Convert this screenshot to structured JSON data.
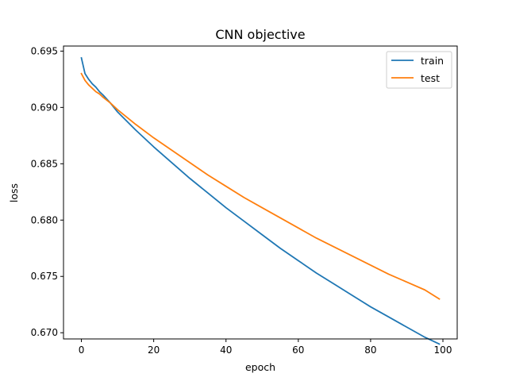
{
  "chart_data": {
    "type": "line",
    "title": "CNN objective",
    "xlabel": "epoch",
    "ylabel": "loss",
    "xlim": [
      -4.95,
      103.95
    ],
    "ylim": [
      0.66945,
      0.69545
    ],
    "xticks": [
      0,
      20,
      40,
      60,
      80,
      100
    ],
    "xtick_labels": [
      "0",
      "20",
      "40",
      "60",
      "80",
      "100"
    ],
    "yticks": [
      0.67,
      0.675,
      0.68,
      0.685,
      0.69,
      0.695
    ],
    "ytick_labels": [
      "0.670",
      "0.675",
      "0.680",
      "0.685",
      "0.690",
      "0.695"
    ],
    "grid": false,
    "legend_position": "top-right",
    "series": [
      {
        "name": "train",
        "color": "#1f77b4",
        "x": [
          0,
          1,
          2,
          3,
          4,
          5,
          6,
          8,
          10,
          15,
          20,
          25,
          30,
          35,
          40,
          45,
          50,
          55,
          60,
          65,
          70,
          75,
          80,
          85,
          90,
          95,
          99
        ],
        "y": [
          0.6944,
          0.693,
          0.6925,
          0.6921,
          0.6918,
          0.6914,
          0.6911,
          0.6904,
          0.6896,
          0.688,
          0.6865,
          0.6851,
          0.6837,
          0.6824,
          0.6811,
          0.6799,
          0.6787,
          0.6775,
          0.6764,
          0.6753,
          0.6743,
          0.6733,
          0.6723,
          0.6714,
          0.6705,
          0.6696,
          0.669
        ]
      },
      {
        "name": "test",
        "color": "#ff7f0e",
        "x": [
          0,
          1,
          2,
          3,
          4,
          5,
          6,
          8,
          10,
          15,
          20,
          25,
          30,
          35,
          40,
          45,
          50,
          55,
          60,
          65,
          70,
          75,
          80,
          85,
          90,
          95,
          99
        ],
        "y": [
          0.693,
          0.6924,
          0.692,
          0.6917,
          0.6914,
          0.6912,
          0.6909,
          0.6904,
          0.6898,
          0.6885,
          0.6873,
          0.6862,
          0.6851,
          0.684,
          0.683,
          0.682,
          0.6811,
          0.6802,
          0.6793,
          0.6784,
          0.6776,
          0.6768,
          0.676,
          0.6752,
          0.6745,
          0.6738,
          0.673
        ]
      }
    ]
  }
}
